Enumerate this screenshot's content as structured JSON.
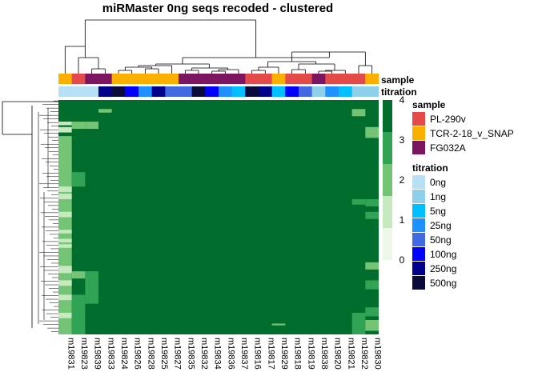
{
  "chart_data": {
    "type": "heatmap",
    "title": "miRMaster 0ng seqs recoded - clustered",
    "columns": [
      "m19831",
      "m19823",
      "m19839",
      "m19833",
      "m19824",
      "m19826",
      "m19828",
      "m19825",
      "m19827",
      "m19835",
      "m19832",
      "m19834",
      "m19836",
      "m19837",
      "m19816",
      "m19817",
      "m19829",
      "m19818",
      "m19819",
      "m19838",
      "m19820",
      "m19821",
      "m19822",
      "m19830"
    ],
    "annotation_labels": {
      "sample": "sample",
      "titration": "titration"
    },
    "sample_row": [
      "TCR-2-18_v_SNAP",
      "PL-290v",
      "FG032A",
      "FG032A",
      "TCR-2-18_v_SNAP",
      "TCR-2-18_v_SNAP",
      "TCR-2-18_v_SNAP",
      "TCR-2-18_v_SNAP",
      "TCR-2-18_v_SNAP",
      "FG032A",
      "FG032A",
      "FG032A",
      "FG032A",
      "FG032A",
      "PL-290v",
      "PL-290v",
      "TCR-2-18_v_SNAP",
      "PL-290v",
      "PL-290v",
      "FG032A",
      "PL-290v",
      "PL-290v",
      "PL-290v",
      "TCR-2-18_v_SNAP"
    ],
    "titration_row": [
      "0ng",
      "0ng",
      "0ng",
      "250ng",
      "500ng",
      "100ng",
      "25ng",
      "250ng",
      "50ng",
      "50ng",
      "500ng",
      "100ng",
      "25ng",
      "5ng",
      "500ng",
      "250ng",
      "5ng",
      "100ng",
      "50ng",
      "1ng",
      "25ng",
      "5ng",
      "1ng",
      "1ng"
    ],
    "color_scale": {
      "min": 0,
      "max": 4,
      "ticks": [
        0,
        1,
        2,
        3,
        4
      ],
      "colors": [
        "#edf8e9",
        "#c7e9c0",
        "#74c476",
        "#31a354",
        "#006d2c"
      ]
    },
    "row_count": 130,
    "dominant_value": 4,
    "cell_values_note": "",
    "legends": {
      "sample": {
        "title": "sample",
        "entries": [
          {
            "label": "PL-290v",
            "color": "#e34a4a"
          },
          {
            "label": "TCR-2-18_v_SNAP",
            "color": "#fbb000"
          },
          {
            "label": "FG032A",
            "color": "#7b1560"
          }
        ]
      },
      "titration": {
        "title": "titration",
        "entries": [
          {
            "label": "0ng",
            "color": "#b7e0f7"
          },
          {
            "label": "1ng",
            "color": "#8ecfea"
          },
          {
            "label": "5ng",
            "color": "#00bfff"
          },
          {
            "label": "25ng",
            "color": "#1e90ff"
          },
          {
            "label": "50ng",
            "color": "#4169e1"
          },
          {
            "label": "100ng",
            "color": "#0000ff"
          },
          {
            "label": "250ng",
            "color": "#00008b"
          },
          {
            "label": "500ng",
            "color": "#0b0b3b"
          }
        ]
      }
    },
    "col_heatmap_patterns": {
      "m19831": [
        [
          12,
          2
        ],
        [
          15,
          3
        ],
        [
          48,
          3
        ],
        [
          52,
          3
        ],
        [
          62,
          3
        ],
        [
          72,
          2
        ],
        [
          77,
          2
        ],
        [
          80,
          2
        ],
        [
          92,
          4
        ],
        [
          100,
          3
        ],
        [
          108,
          3
        ],
        [
          118,
          3
        ]
      ],
      "m19823": [
        [
          12,
          4
        ],
        [
          40,
          8
        ],
        [
          108,
          22
        ],
        [
          95,
          4
        ]
      ],
      "m19839": [
        [
          12,
          4
        ],
        [
          95,
          18
        ]
      ],
      "m19833": [
        [
          5,
          2
        ]
      ],
      "m19830": [
        [
          15,
          6
        ],
        [
          55,
          4
        ],
        [
          62,
          4
        ],
        [
          90,
          4
        ],
        [
          100,
          5
        ],
        [
          115,
          5
        ],
        [
          122,
          6
        ]
      ],
      "m19822": [
        [
          5,
          4
        ],
        [
          55,
          3
        ],
        [
          118,
          12
        ]
      ],
      "m19829": [
        [
          124,
          1
        ]
      ]
    }
  }
}
